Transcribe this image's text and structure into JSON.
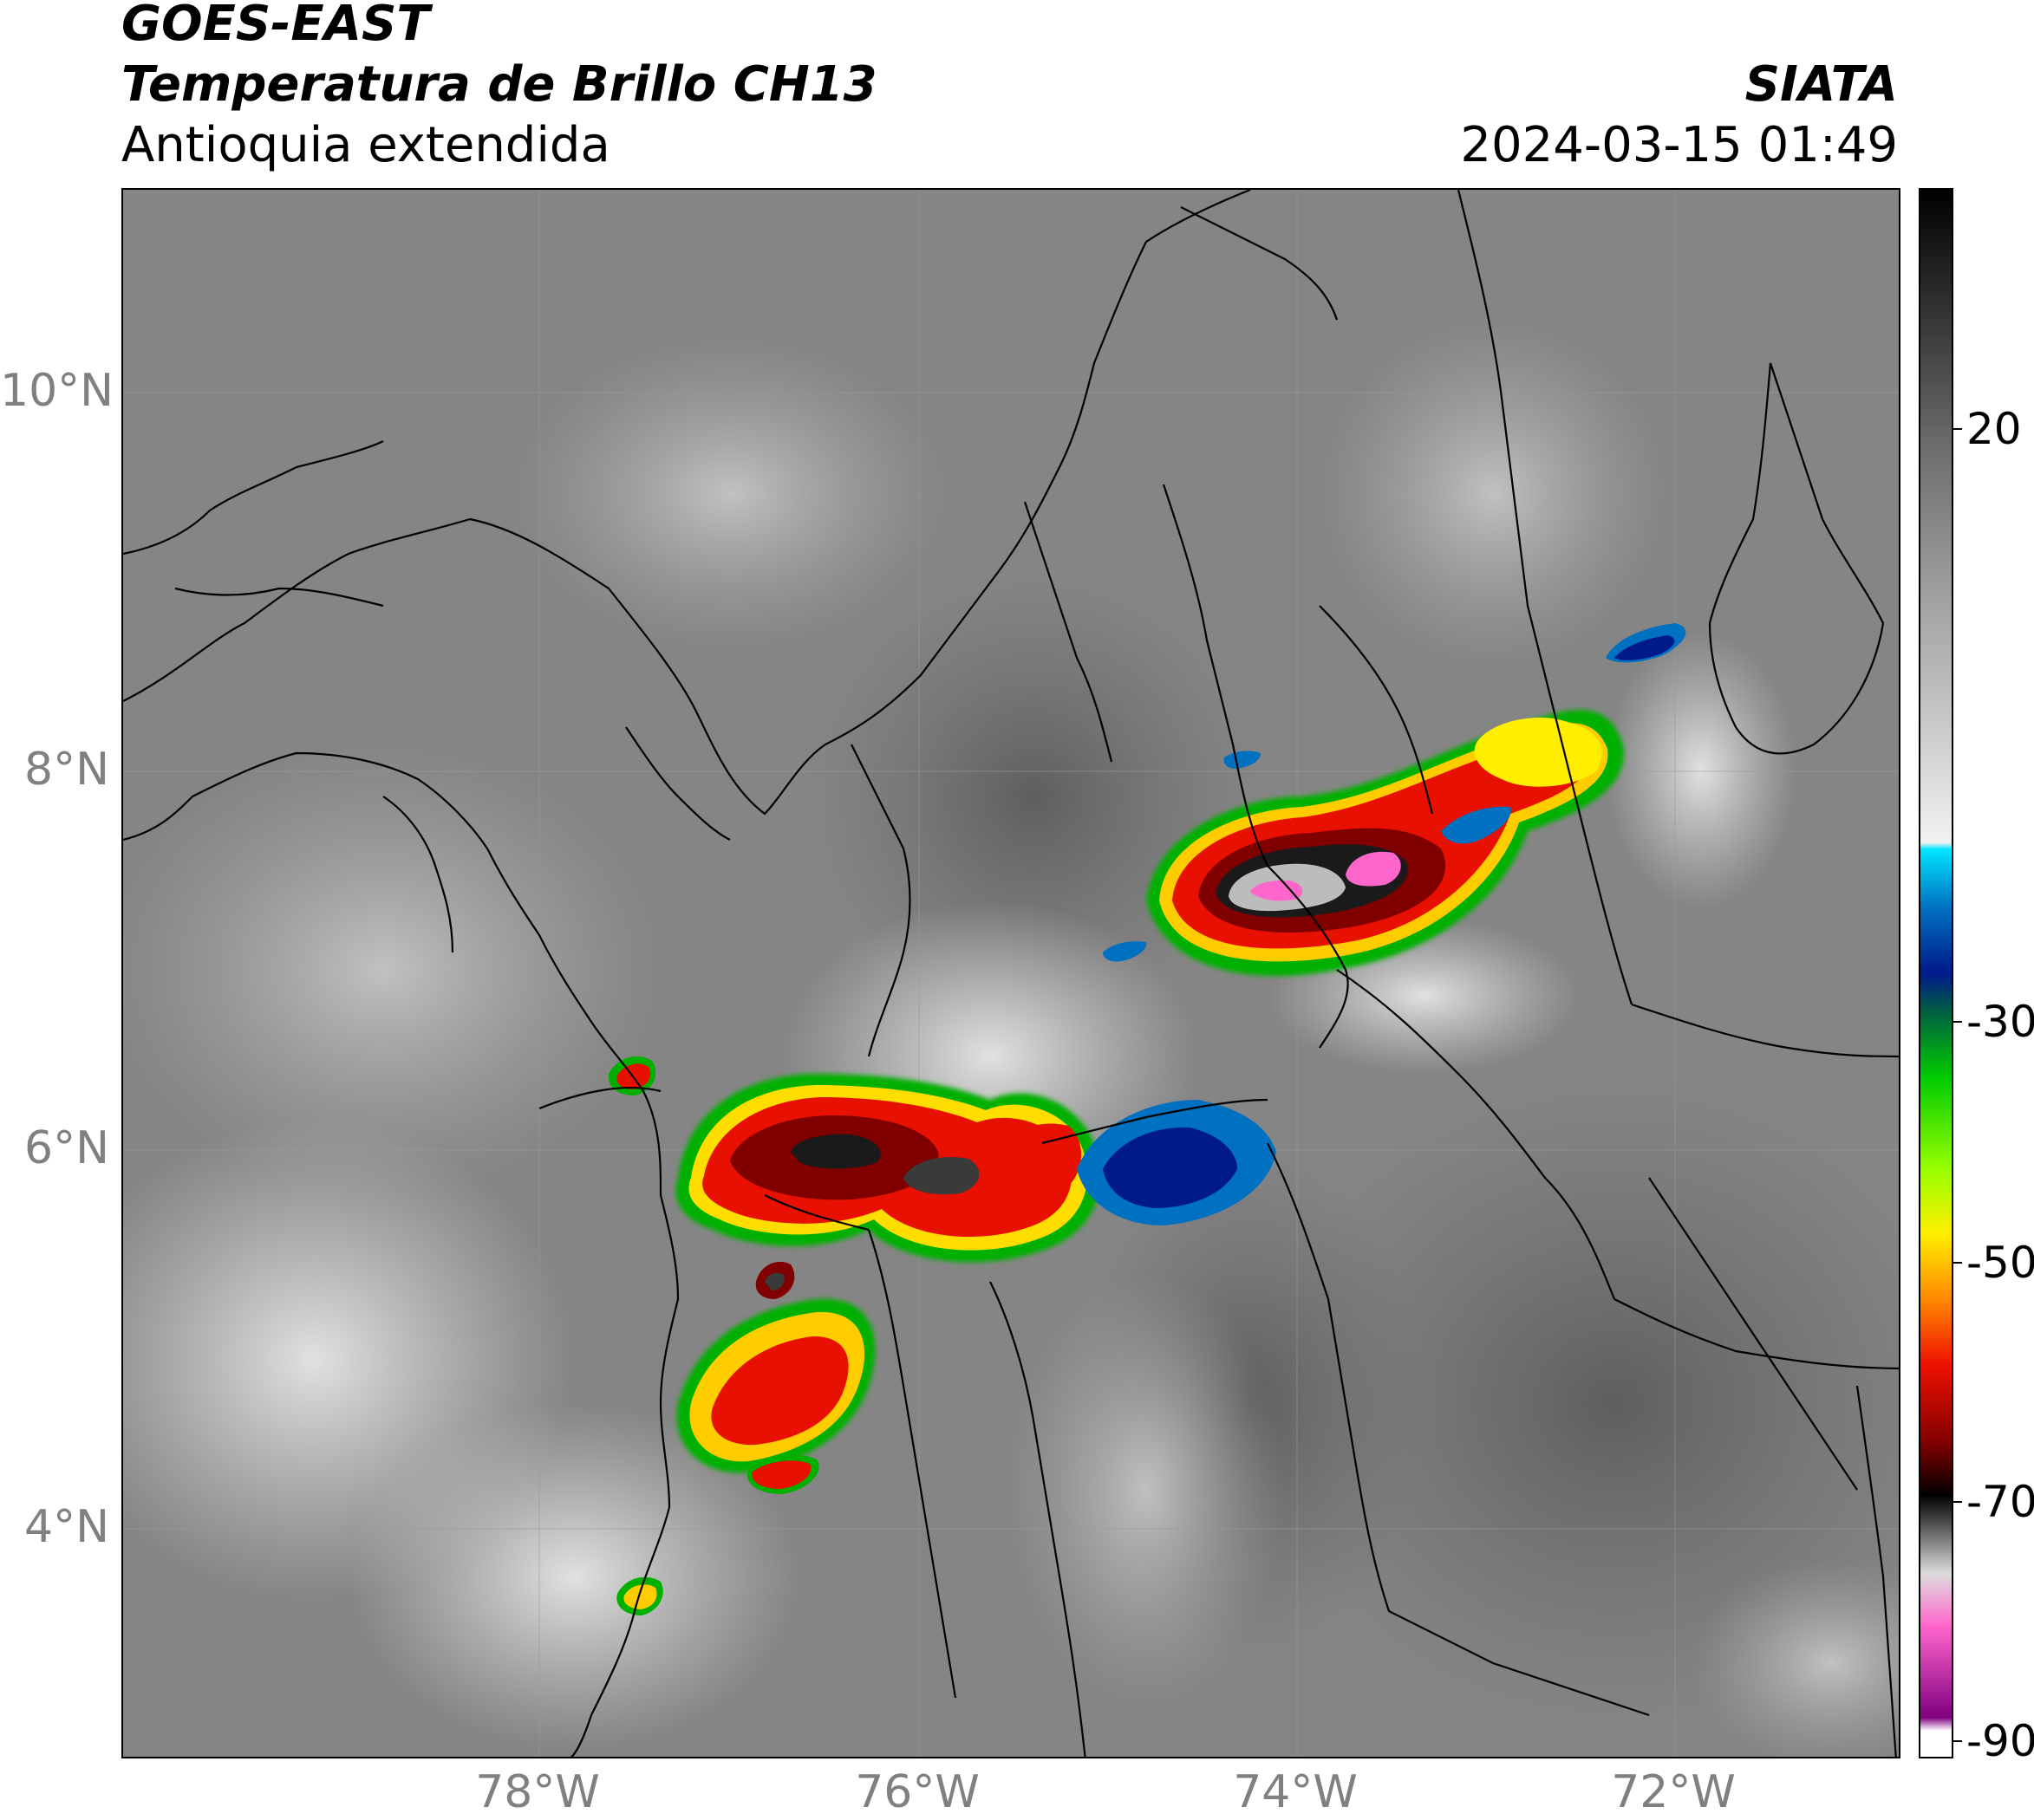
{
  "header": {
    "satellite": "GOES-EAST",
    "product": "Temperatura de Brillo CH13",
    "region": "Antioquia extendida",
    "agency": "SIATA",
    "datetime": "2024-03-15 01:49"
  },
  "map": {
    "extent": {
      "lon_min": -80.1,
      "lon_max": -70.7,
      "lat_min": 2.5,
      "lat_max": 11.0
    },
    "lat_ticks": [
      {
        "value": 10,
        "label": "10°N"
      },
      {
        "value": 8,
        "label": "8°N"
      },
      {
        "value": 6,
        "label": "6°N"
      },
      {
        "value": 4,
        "label": "4°N"
      }
    ],
    "lon_ticks": [
      {
        "value": -78,
        "label": "78°W"
      },
      {
        "value": -76,
        "label": "76°W"
      },
      {
        "value": -74,
        "label": "74°W"
      },
      {
        "value": -72,
        "label": "72°W"
      }
    ],
    "gridlines": true
  },
  "colorbar": {
    "units_range": [
      -90,
      30
    ],
    "ticks": [
      {
        "value": 20,
        "label": "20"
      },
      {
        "value": -30,
        "label": "-30"
      },
      {
        "value": -50,
        "label": "-50"
      },
      {
        "value": -70,
        "label": "-70"
      },
      {
        "value": -90,
        "label": "-90"
      }
    ],
    "color_stops": [
      {
        "value": 30,
        "color": "#000000"
      },
      {
        "value": 10,
        "color": "#6e6e6e"
      },
      {
        "value": -20,
        "color": "#f2f2f2"
      },
      {
        "value": -20.5,
        "color": "#00e5ff"
      },
      {
        "value": -25,
        "color": "#0070c0"
      },
      {
        "value": -30,
        "color": "#001a8c"
      },
      {
        "value": -33,
        "color": "#006040"
      },
      {
        "value": -38,
        "color": "#00cc00"
      },
      {
        "value": -45,
        "color": "#99ff00"
      },
      {
        "value": -50,
        "color": "#ffee00"
      },
      {
        "value": -55,
        "color": "#ff8800"
      },
      {
        "value": -60,
        "color": "#ee1100"
      },
      {
        "value": -66,
        "color": "#800000"
      },
      {
        "value": -70,
        "color": "#000000"
      },
      {
        "value": -76,
        "color": "#dddddd"
      },
      {
        "value": -80,
        "color": "#ff66cc"
      },
      {
        "value": -87,
        "color": "#800080"
      },
      {
        "value": -88,
        "color": "#ffffff"
      }
    ]
  }
}
